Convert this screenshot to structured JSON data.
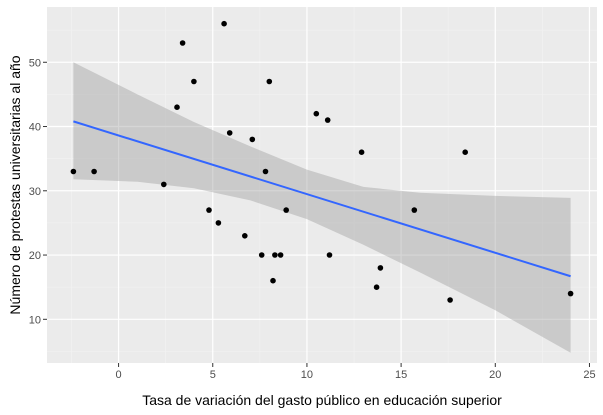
{
  "chart_data": {
    "type": "scatter",
    "title": "",
    "xlabel": "Tasa de variación del gasto público en educación superior",
    "ylabel": "Número de protestas universitarias al año",
    "xlim": [
      -3.8,
      25.4
    ],
    "ylim": [
      3.2,
      58.6
    ],
    "x_ticks": [
      0,
      5,
      10,
      15,
      20,
      25
    ],
    "y_ticks": [
      10,
      20,
      30,
      40,
      50
    ],
    "x_tick_labels": [
      "0",
      "5",
      "10",
      "15",
      "20",
      "25"
    ],
    "y_tick_labels": [
      "10",
      "20",
      "30",
      "40",
      "50"
    ],
    "grid": true,
    "points": [
      {
        "x": -2.4,
        "y": 33
      },
      {
        "x": -1.3,
        "y": 33
      },
      {
        "x": 2.4,
        "y": 31
      },
      {
        "x": 3.1,
        "y": 43
      },
      {
        "x": 3.4,
        "y": 53
      },
      {
        "x": 4.0,
        "y": 47
      },
      {
        "x": 4.8,
        "y": 27
      },
      {
        "x": 5.3,
        "y": 25
      },
      {
        "x": 5.6,
        "y": 56
      },
      {
        "x": 5.9,
        "y": 39
      },
      {
        "x": 6.7,
        "y": 23
      },
      {
        "x": 7.1,
        "y": 38
      },
      {
        "x": 7.6,
        "y": 20
      },
      {
        "x": 7.8,
        "y": 33
      },
      {
        "x": 8.0,
        "y": 47
      },
      {
        "x": 8.2,
        "y": 16
      },
      {
        "x": 8.3,
        "y": 20
      },
      {
        "x": 8.6,
        "y": 20
      },
      {
        "x": 8.9,
        "y": 27
      },
      {
        "x": 10.5,
        "y": 42
      },
      {
        "x": 11.1,
        "y": 41
      },
      {
        "x": 11.2,
        "y": 20
      },
      {
        "x": 12.9,
        "y": 36
      },
      {
        "x": 13.7,
        "y": 15
      },
      {
        "x": 13.9,
        "y": 18
      },
      {
        "x": 15.7,
        "y": 27
      },
      {
        "x": 17.6,
        "y": 13
      },
      {
        "x": 18.4,
        "y": 36
      },
      {
        "x": 24.0,
        "y": 14
      }
    ],
    "fit_line": {
      "x": [
        -2.4,
        24.0
      ],
      "y": [
        40.8,
        16.7
      ]
    },
    "confidence_band": {
      "x": [
        -2.4,
        1,
        4,
        7,
        10,
        13,
        16,
        20,
        24.0
      ],
      "lower": [
        31.8,
        31.4,
        30.4,
        28.5,
        25.6,
        21.6,
        17.3,
        11.4,
        4.8
      ],
      "upper": [
        50.0,
        45.0,
        40.7,
        36.9,
        33.3,
        30.6,
        29.7,
        29.2,
        28.9
      ]
    },
    "colors": {
      "panel": "#ebebeb",
      "grid_major": "#ffffff",
      "grid_minor": "#f2f2f2",
      "points": "#000000",
      "fit_line": "#3366ff",
      "band": "#999999"
    }
  }
}
